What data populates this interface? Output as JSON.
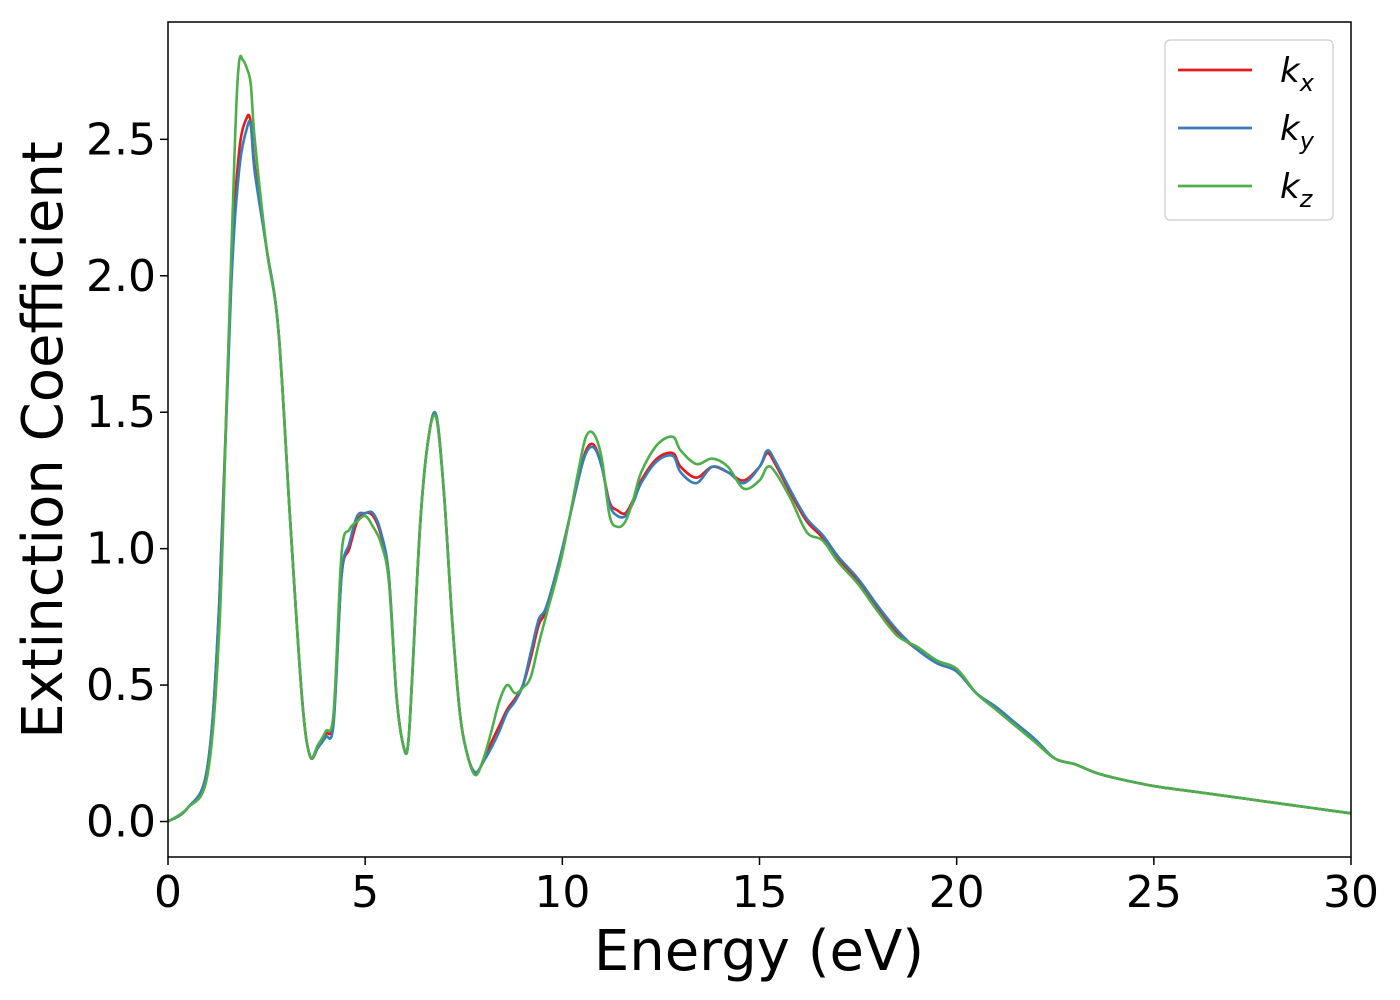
{
  "chart_data": {
    "type": "line",
    "xlabel": "Energy (eV)",
    "ylabel": "Extinction Coefficient",
    "xlim": [
      0,
      30
    ],
    "ylim": [
      -0.13,
      2.93
    ],
    "xticks": [
      0,
      5,
      10,
      15,
      20,
      25,
      30
    ],
    "yticks": [
      "0.0",
      "0.5",
      "1.0",
      "1.5",
      "2.0",
      "2.5"
    ],
    "grid": false,
    "legend_position": "top-right",
    "series": [
      {
        "name": "k",
        "sub": "x",
        "color": "#e41a1c",
        "x": [
          0,
          0.5,
          1.0,
          1.3,
          1.6,
          1.8,
          2.0,
          2.1,
          2.2,
          2.5,
          2.8,
          3.1,
          3.4,
          3.6,
          3.8,
          4.0,
          4.2,
          4.4,
          4.6,
          4.8,
          5.0,
          5.2,
          5.4,
          5.6,
          5.8,
          6.0,
          6.1,
          6.2,
          6.4,
          6.6,
          6.8,
          7.0,
          7.2,
          7.4,
          7.6,
          7.8,
          8.0,
          8.2,
          8.4,
          8.6,
          8.8,
          9.0,
          9.2,
          9.4,
          9.6,
          10.0,
          10.4,
          10.6,
          10.8,
          11.0,
          11.2,
          11.4,
          11.6,
          11.8,
          12.0,
          12.4,
          12.8,
          13.0,
          13.4,
          13.8,
          14.2,
          14.6,
          15.0,
          15.2,
          15.4,
          15.8,
          16.2,
          16.6,
          17.0,
          17.5,
          18.0,
          18.5,
          19.0,
          19.5,
          20.0,
          20.5,
          21.0,
          21.5,
          22.0,
          22.5,
          23.0,
          23.5,
          24.0,
          25.0,
          26.0,
          27.0,
          28.0,
          29.0,
          30.0
        ],
        "y": [
          0.0,
          0.05,
          0.2,
          0.8,
          2.0,
          2.45,
          2.58,
          2.56,
          2.4,
          2.1,
          1.8,
          1.1,
          0.45,
          0.24,
          0.27,
          0.32,
          0.38,
          0.9,
          1.0,
          1.1,
          1.13,
          1.12,
          1.05,
          0.9,
          0.45,
          0.26,
          0.3,
          0.55,
          1.1,
          1.4,
          1.49,
          1.2,
          0.75,
          0.4,
          0.24,
          0.18,
          0.22,
          0.29,
          0.35,
          0.41,
          0.45,
          0.5,
          0.6,
          0.72,
          0.78,
          1.0,
          1.25,
          1.36,
          1.38,
          1.3,
          1.17,
          1.14,
          1.13,
          1.18,
          1.25,
          1.33,
          1.35,
          1.3,
          1.26,
          1.3,
          1.28,
          1.25,
          1.3,
          1.35,
          1.31,
          1.2,
          1.1,
          1.04,
          0.96,
          0.88,
          0.78,
          0.69,
          0.63,
          0.58,
          0.55,
          0.47,
          0.41,
          0.35,
          0.29,
          0.23,
          0.21,
          0.18,
          0.16,
          0.13,
          0.11,
          0.09,
          0.07,
          0.05,
          0.03
        ]
      },
      {
        "name": "k",
        "sub": "y",
        "color": "#377eb8",
        "x": [
          0,
          0.5,
          1.0,
          1.3,
          1.6,
          1.8,
          2.0,
          2.1,
          2.2,
          2.5,
          2.8,
          3.1,
          3.4,
          3.6,
          3.8,
          4.0,
          4.2,
          4.4,
          4.6,
          4.8,
          5.0,
          5.2,
          5.4,
          5.6,
          5.8,
          6.0,
          6.1,
          6.2,
          6.4,
          6.6,
          6.8,
          7.0,
          7.2,
          7.4,
          7.6,
          7.8,
          8.0,
          8.2,
          8.4,
          8.6,
          8.8,
          9.0,
          9.2,
          9.4,
          9.6,
          10.0,
          10.4,
          10.6,
          10.8,
          11.0,
          11.2,
          11.4,
          11.6,
          11.8,
          12.0,
          12.4,
          12.8,
          13.0,
          13.4,
          13.8,
          14.2,
          14.6,
          15.0,
          15.2,
          15.4,
          15.8,
          16.2,
          16.6,
          17.0,
          17.5,
          18.0,
          18.5,
          19.0,
          19.5,
          20.0,
          20.5,
          21.0,
          21.5,
          22.0,
          22.5,
          23.0,
          23.5,
          24.0,
          25.0,
          26.0,
          27.0,
          28.0,
          29.0,
          30.0
        ],
        "y": [
          0.0,
          0.05,
          0.2,
          0.8,
          1.95,
          2.38,
          2.54,
          2.55,
          2.38,
          2.1,
          1.8,
          1.1,
          0.45,
          0.24,
          0.27,
          0.31,
          0.36,
          0.9,
          1.02,
          1.12,
          1.13,
          1.13,
          1.06,
          0.9,
          0.45,
          0.26,
          0.3,
          0.55,
          1.1,
          1.4,
          1.49,
          1.2,
          0.75,
          0.4,
          0.24,
          0.18,
          0.22,
          0.27,
          0.33,
          0.4,
          0.44,
          0.5,
          0.62,
          0.74,
          0.79,
          1.0,
          1.25,
          1.35,
          1.37,
          1.3,
          1.16,
          1.12,
          1.12,
          1.17,
          1.24,
          1.32,
          1.34,
          1.28,
          1.24,
          1.3,
          1.28,
          1.24,
          1.3,
          1.36,
          1.32,
          1.21,
          1.11,
          1.05,
          0.97,
          0.89,
          0.79,
          0.7,
          0.63,
          0.58,
          0.55,
          0.47,
          0.42,
          0.36,
          0.3,
          0.23,
          0.21,
          0.18,
          0.16,
          0.13,
          0.11,
          0.09,
          0.07,
          0.05,
          0.03
        ]
      },
      {
        "name": "k",
        "sub": "z",
        "color": "#4daf4a",
        "x": [
          0,
          0.5,
          1.0,
          1.3,
          1.5,
          1.7,
          1.8,
          1.9,
          2.0,
          2.1,
          2.2,
          2.5,
          2.8,
          3.1,
          3.4,
          3.6,
          3.8,
          4.0,
          4.2,
          4.4,
          4.6,
          4.8,
          5.0,
          5.2,
          5.4,
          5.6,
          5.8,
          6.0,
          6.1,
          6.2,
          6.4,
          6.6,
          6.8,
          7.0,
          7.2,
          7.4,
          7.6,
          7.8,
          8.0,
          8.2,
          8.4,
          8.6,
          8.8,
          9.0,
          9.2,
          9.4,
          9.6,
          10.0,
          10.4,
          10.6,
          10.8,
          11.0,
          11.2,
          11.4,
          11.6,
          11.8,
          12.0,
          12.4,
          12.8,
          13.0,
          13.4,
          13.8,
          14.2,
          14.6,
          15.0,
          15.2,
          15.4,
          15.8,
          16.2,
          16.6,
          17.0,
          17.5,
          18.0,
          18.5,
          19.0,
          19.5,
          20.0,
          20.5,
          21.0,
          21.5,
          22.0,
          22.5,
          23.0,
          23.5,
          24.0,
          25.0,
          26.0,
          27.0,
          28.0,
          29.0,
          30.0
        ],
        "y": [
          0.0,
          0.05,
          0.17,
          0.7,
          1.6,
          2.5,
          2.78,
          2.79,
          2.76,
          2.7,
          2.5,
          2.1,
          1.8,
          1.1,
          0.45,
          0.24,
          0.28,
          0.33,
          0.4,
          0.98,
          1.07,
          1.1,
          1.12,
          1.08,
          1.02,
          0.88,
          0.45,
          0.26,
          0.3,
          0.55,
          1.1,
          1.4,
          1.48,
          1.2,
          0.75,
          0.4,
          0.24,
          0.17,
          0.23,
          0.33,
          0.44,
          0.5,
          0.47,
          0.49,
          0.53,
          0.65,
          0.76,
          0.98,
          1.28,
          1.41,
          1.42,
          1.33,
          1.12,
          1.08,
          1.1,
          1.18,
          1.28,
          1.38,
          1.41,
          1.36,
          1.31,
          1.33,
          1.3,
          1.22,
          1.25,
          1.3,
          1.28,
          1.18,
          1.06,
          1.03,
          0.95,
          0.87,
          0.77,
          0.68,
          0.64,
          0.59,
          0.56,
          0.47,
          0.41,
          0.35,
          0.29,
          0.23,
          0.21,
          0.18,
          0.16,
          0.13,
          0.11,
          0.09,
          0.07,
          0.05,
          0.03
        ]
      }
    ]
  }
}
